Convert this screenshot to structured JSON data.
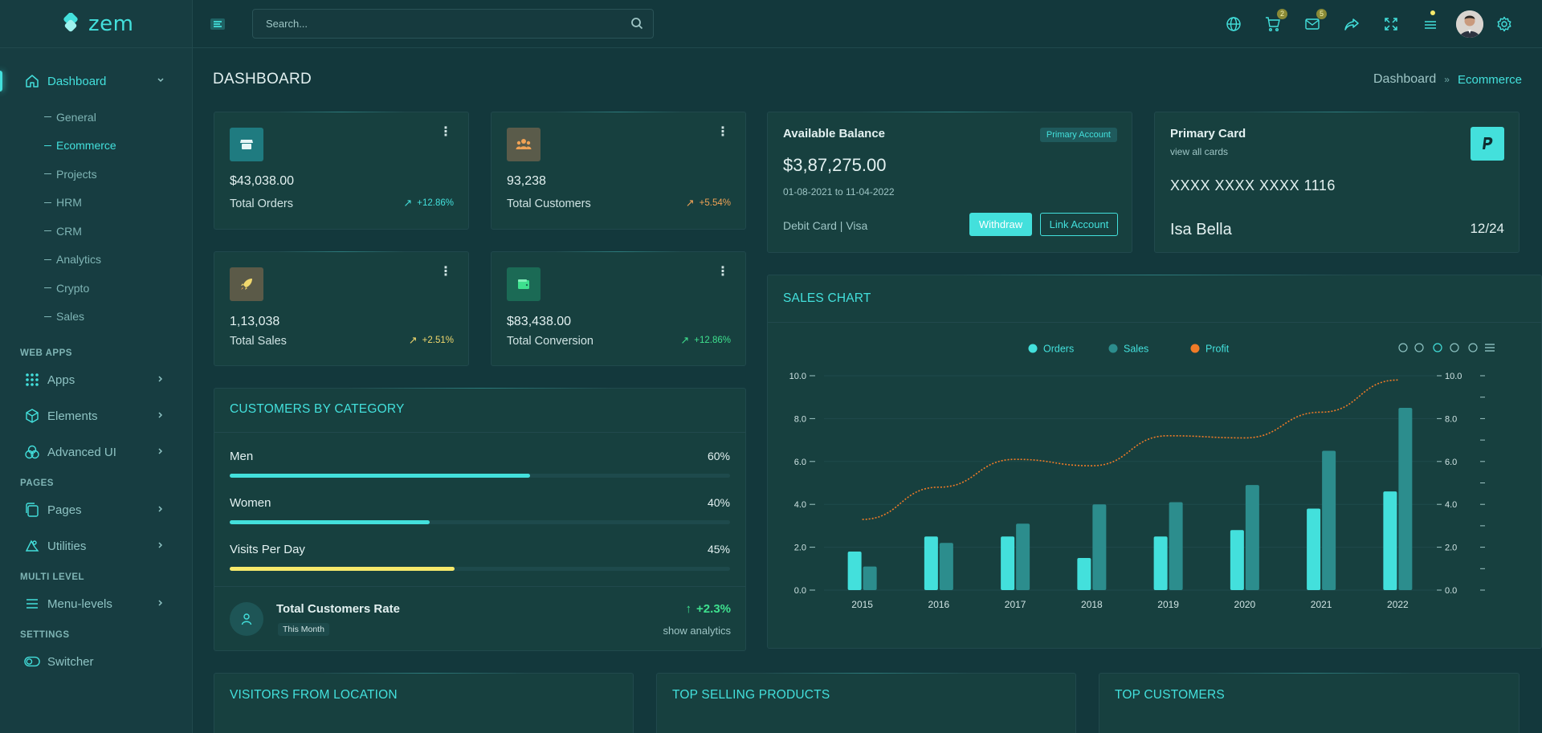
{
  "brand": {
    "name": "zem"
  },
  "sidebar": {
    "dashboard": {
      "label": "Dashboard",
      "icon": "home-icon"
    },
    "subitems": [
      "General",
      "Ecommerce",
      "Projects",
      "HRM",
      "CRM",
      "Analytics",
      "Crypto",
      "Sales"
    ],
    "sections": [
      {
        "title": "WEB APPS",
        "items": [
          {
            "label": "Apps",
            "icon": "apps-grid-icon"
          },
          {
            "label": "Elements",
            "icon": "cube-icon"
          },
          {
            "label": "Advanced UI",
            "icon": "circles-icon"
          }
        ]
      },
      {
        "title": "PAGES",
        "items": [
          {
            "label": "Pages",
            "icon": "pages-icon"
          },
          {
            "label": "Utilities",
            "icon": "utilities-icon"
          }
        ]
      },
      {
        "title": "MULTI LEVEL",
        "items": [
          {
            "label": "Menu-levels",
            "icon": "menu-lines-icon"
          }
        ]
      },
      {
        "title": "SETTINGS",
        "items": [
          {
            "label": "Switcher",
            "icon": "toggle-icon"
          }
        ]
      }
    ]
  },
  "header": {
    "search_placeholder": "Search...",
    "cart_badge": "2",
    "mail_badge": "5"
  },
  "page": {
    "title": "DASHBOARD",
    "breadcrumb": [
      "Dashboard",
      "Ecommerce"
    ]
  },
  "stats": [
    {
      "value": "$43,038.00",
      "label": "Total Orders",
      "trend": "+12.86%",
      "trend_color": "#43e0dc",
      "icon_bg": "#1f7b80",
      "icon": "store-icon"
    },
    {
      "value": "93,238",
      "label": "Total Customers",
      "trend": "+5.54%",
      "trend_color": "#f0a255",
      "icon_bg": "#5a5b4a",
      "icon": "users-icon"
    },
    {
      "value": "1,13,038",
      "label": "Total Sales",
      "trend": "+2.51%",
      "trend_color": "#f1d86d",
      "icon_bg": "#5b5a48",
      "icon": "rocket-icon"
    },
    {
      "value": "$83,438.00",
      "label": "Total Conversion",
      "trend": "+12.86%",
      "trend_color": "#3ee08e",
      "icon_bg": "#1b6a55",
      "icon": "wallet-icon"
    }
  ],
  "customers_by_category": {
    "title": "CUSTOMERS BY CATEGORY",
    "rows": [
      {
        "name": "Men",
        "pct": "60%",
        "value": 0.6,
        "color": "#43e0dc"
      },
      {
        "name": "Women",
        "pct": "40%",
        "value": 0.4,
        "color": "#43e0dc"
      },
      {
        "name": "Visits Per Day",
        "pct": "45%",
        "value": 0.45,
        "color": "#f6e96b"
      }
    ],
    "rate_title": "Total Customers Rate",
    "rate_sub": "This Month",
    "rate_value": "+2.3%",
    "rate_link": "show analytics"
  },
  "balance": {
    "title": "Available Balance",
    "badge": "Primary Account",
    "amount": "$3,87,275.00",
    "range": "01-08-2021 to 11-04-2022",
    "card_type": "Debit Card | Visa",
    "withdraw": "Withdraw",
    "link": "Link Account"
  },
  "primary_card": {
    "title": "Primary Card",
    "sub": "view all cards",
    "number": "XXXX XXXX XXXX 1116",
    "holder": "Isa Bella",
    "expiry": "12/24"
  },
  "sales_chart": {
    "title": "SALES CHART"
  },
  "chart_data": {
    "type": "bar",
    "categories": [
      "2015",
      "2016",
      "2017",
      "2018",
      "2019",
      "2020",
      "2021",
      "2022"
    ],
    "series": [
      {
        "name": "Orders",
        "type": "bar",
        "color": "#43e0dc",
        "values": [
          1.8,
          2.5,
          2.5,
          1.5,
          2.5,
          2.8,
          3.8,
          4.6
        ]
      },
      {
        "name": "Sales",
        "type": "bar",
        "color": "#2c8d8d",
        "values": [
          1.1,
          2.2,
          3.1,
          4.0,
          4.1,
          4.9,
          6.5,
          8.5
        ]
      },
      {
        "name": "Profit",
        "type": "line",
        "color": "#f07b27",
        "values": [
          3.3,
          4.8,
          6.1,
          5.8,
          7.2,
          7.1,
          8.3,
          9.8
        ]
      }
    ],
    "y_ticks": [
      "0.0",
      "2.0",
      "4.0",
      "6.0",
      "8.0",
      "10.0"
    ],
    "ylim": [
      0,
      10
    ],
    "legend": "top-center",
    "toolbar": [
      "zoom-in-icon",
      "zoom-out-icon",
      "zoom-select-icon",
      "pan-icon",
      "reset-home-icon",
      "menu-icon"
    ]
  },
  "bottom_cards": [
    "VISITORS FROM LOCATION",
    "TOP SELLING PRODUCTS",
    "TOP CUSTOMERS"
  ]
}
